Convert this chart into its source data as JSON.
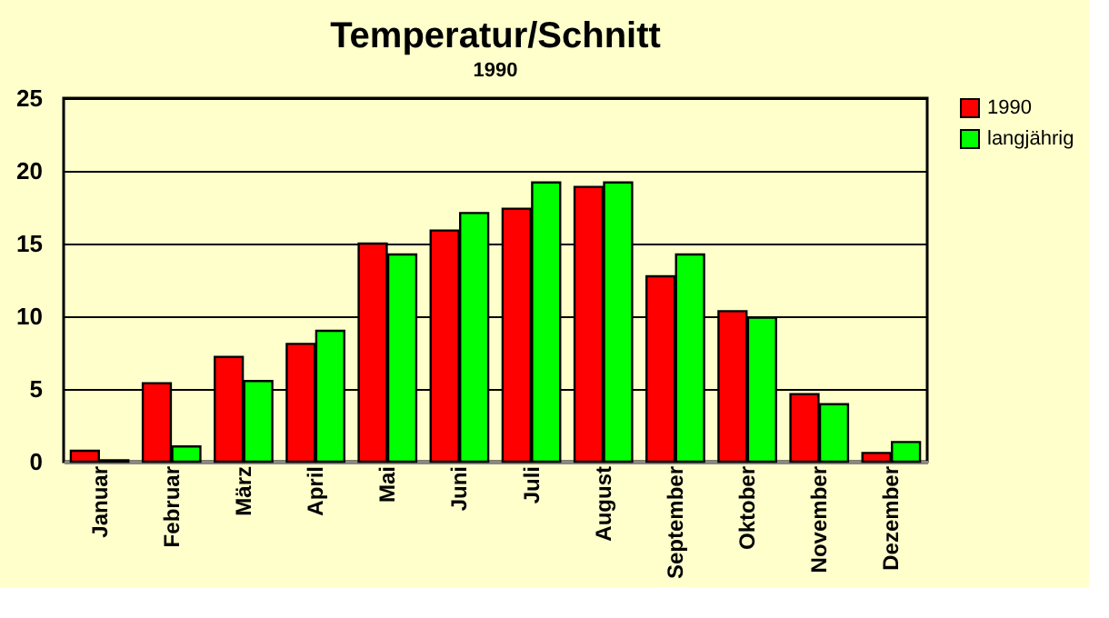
{
  "chart_data": {
    "type": "bar",
    "title": "Temperatur/Schnitt",
    "subtitle": "1990",
    "categories": [
      "Januar",
      "Februar",
      "März",
      "April",
      "Mai",
      "Juni",
      "Juli",
      "August",
      "September",
      "Oktober",
      "November",
      "Dezember"
    ],
    "series": [
      {
        "name": "1990",
        "color": "#ff0000",
        "values": [
          0.75,
          5.4,
          7.2,
          8.1,
          15.0,
          15.9,
          17.4,
          18.9,
          12.75,
          10.35,
          4.65,
          0.6
        ]
      },
      {
        "name": "langjährig",
        "color": "#00ff00",
        "values": [
          0.1,
          1.05,
          5.55,
          9.0,
          14.25,
          17.1,
          19.2,
          19.2,
          14.25,
          9.9,
          3.95,
          1.35
        ]
      }
    ],
    "ylim": [
      0,
      25
    ],
    "yticks": [
      0,
      5,
      10,
      15,
      20,
      25
    ],
    "grid": "y",
    "legend": "right"
  }
}
